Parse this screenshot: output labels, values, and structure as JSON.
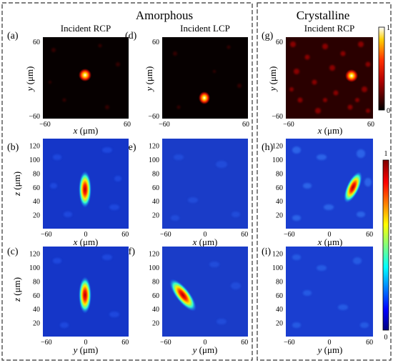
{
  "sections": {
    "amorphous": "Amorphous",
    "crystalline": "Crystalline"
  },
  "columns": {
    "col1": "Incident RCP",
    "col2": "Incident LCP",
    "col3": "Incident RCP"
  },
  "panel_labels": [
    "(a)",
    "(b)",
    "(c)",
    "(d)",
    "(e)",
    "(f)",
    "(g)",
    "(h)",
    "(i)"
  ],
  "axes": {
    "top_x": {
      "var": "x",
      "unit": " (μm)",
      "ticks": [
        "−60",
        "0",
        "60"
      ]
    },
    "top_y": {
      "var": "y",
      "unit": " (μm)",
      "ticks": [
        "60",
        "−60"
      ]
    },
    "z": {
      "var": "z",
      "unit": " (μm)",
      "ticks": [
        "120",
        "100",
        "80",
        "60",
        "40",
        "20"
      ]
    },
    "mid_x": {
      "var": "x",
      "unit": " (μm)",
      "ticks": [
        "−60",
        "0",
        "60"
      ]
    },
    "bot_y": {
      "var": "y",
      "unit": " (μm)",
      "ticks": [
        "−60",
        "0",
        "60"
      ]
    }
  },
  "colorbars": {
    "hot": {
      "max": "1",
      "min": "0"
    },
    "jet": {
      "max": "1",
      "min": "0"
    }
  },
  "colors": {
    "hot_stops": [
      "#000000",
      "#7a0000",
      "#ff2000",
      "#ffb000",
      "#ffffff"
    ],
    "jet_stops": [
      "#00007f",
      "#0000ff",
      "#00ffff",
      "#ffff00",
      "#ff0000",
      "#7f0000"
    ],
    "dash_frame": "#333333"
  }
}
